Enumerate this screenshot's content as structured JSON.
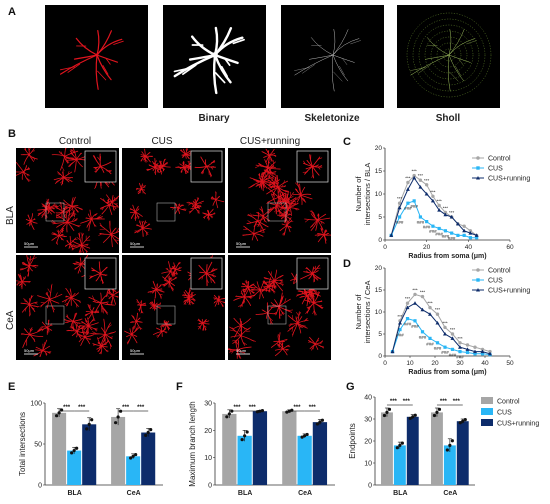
{
  "panel_labels": {
    "a": "A",
    "b": "B",
    "c": "C",
    "d": "D",
    "e": "E",
    "f": "F",
    "g": "G"
  },
  "panel_a": {
    "captions": [
      "",
      "Binary",
      "Skeletonize",
      "Sholl"
    ]
  },
  "panel_b": {
    "columns": [
      "Control",
      "CUS",
      "CUS+running"
    ],
    "rows": [
      "BLA",
      "CeA"
    ],
    "scale_label": "50μm"
  },
  "colors": {
    "control": "#a6a6a6",
    "cus": "#29b6f6",
    "cus_running": "#0d2c6b",
    "astro_red": "#e0141e"
  },
  "legend": [
    "Control",
    "CUS",
    "CUS+running"
  ],
  "chart_data": [
    {
      "id": "C",
      "type": "line",
      "xlabel": "Radius from soma (μm)",
      "ylabel": "Number of intersections / BLA",
      "xlim": [
        0,
        60
      ],
      "ylim": [
        0,
        20
      ],
      "xticks": [
        0,
        20,
        40,
        60
      ],
      "yticks": [
        0,
        5,
        10,
        15,
        20
      ],
      "x": [
        3,
        7,
        11,
        14,
        17,
        20,
        23,
        26,
        29,
        32,
        35,
        38,
        41,
        44
      ],
      "series": [
        {
          "name": "Control",
          "values": [
            1,
            8,
            12.5,
            14,
            13,
            12,
            9.5,
            7.5,
            6,
            5,
            3.5,
            3,
            2,
            1
          ]
        },
        {
          "name": "CUS",
          "values": [
            1,
            5,
            8,
            8.5,
            5,
            4,
            3,
            2.5,
            2,
            1.5,
            1,
            1,
            0.5,
            0.5
          ]
        },
        {
          "name": "CUS+running",
          "values": [
            1,
            7,
            11,
            13.5,
            11.5,
            10,
            8.5,
            6.5,
            5.5,
            5,
            3.5,
            2,
            1.5,
            1
          ]
        }
      ],
      "marks_top": "***",
      "marks_bottom": "###"
    },
    {
      "id": "D",
      "type": "line",
      "xlabel": "Radius from soma (μm)",
      "ylabel": "Number of intersections / CeA",
      "xlim": [
        0,
        50
      ],
      "ylim": [
        0,
        20
      ],
      "xticks": [
        0,
        10,
        20,
        30,
        40,
        50
      ],
      "yticks": [
        0,
        5,
        10,
        15,
        20
      ],
      "x": [
        3,
        6,
        9,
        12,
        15,
        18,
        21,
        24,
        27,
        30,
        33,
        36,
        39,
        42
      ],
      "series": [
        {
          "name": "Control",
          "values": [
            1,
            8,
            12,
            14,
            13.5,
            11,
            9.5,
            6.5,
            5,
            3,
            2.5,
            2,
            1.5,
            1
          ]
        },
        {
          "name": "CUS",
          "values": [
            1,
            6,
            8.5,
            8,
            5.5,
            4,
            3,
            2,
            1.5,
            1,
            0.8,
            0.5,
            0.5,
            0.3
          ]
        },
        {
          "name": "CUS+running",
          "values": [
            1,
            7.5,
            11,
            12,
            10.5,
            9.5,
            7.5,
            5,
            4,
            2,
            1.5,
            1,
            1,
            0.5
          ]
        }
      ],
      "marks_top": "***",
      "marks_bottom": "###"
    },
    {
      "id": "E",
      "type": "bar",
      "ylabel": "Total intersections",
      "categories": [
        "BLA",
        "CeA"
      ],
      "ylim": [
        0,
        100
      ],
      "yticks": [
        0,
        50,
        100
      ],
      "series": [
        {
          "name": "Control",
          "values": [
            88,
            83
          ]
        },
        {
          "name": "CUS",
          "values": [
            42,
            35
          ]
        },
        {
          "name": "CUS+running",
          "values": [
            74,
            64
          ]
        }
      ],
      "errors": [
        [
          5,
          10
        ],
        [
          4,
          3
        ],
        [
          8,
          5
        ]
      ],
      "sig": "***"
    },
    {
      "id": "F",
      "type": "bar",
      "ylabel": "Maximum branch length",
      "categories": [
        "BLA",
        "CeA"
      ],
      "ylim": [
        0,
        30
      ],
      "yticks": [
        0,
        10,
        20,
        30
      ],
      "series": [
        {
          "name": "Control",
          "values": [
            26,
            27
          ]
        },
        {
          "name": "CUS",
          "values": [
            18,
            18
          ]
        },
        {
          "name": "CUS+running",
          "values": [
            27,
            23
          ]
        }
      ],
      "errors": [
        [
          1.5,
          0.5
        ],
        [
          2,
          0.7
        ],
        [
          0.3,
          1
        ]
      ],
      "sig": "***"
    },
    {
      "id": "G",
      "type": "bar",
      "ylabel": "Endpoints",
      "categories": [
        "BLA",
        "CeA"
      ],
      "ylim": [
        0,
        40
      ],
      "yticks": [
        0,
        10,
        20,
        30,
        40
      ],
      "series": [
        {
          "name": "Control",
          "values": [
            33,
            33
          ]
        },
        {
          "name": "CUS",
          "values": [
            18,
            18
          ]
        },
        {
          "name": "CUS+running",
          "values": [
            31,
            29
          ]
        }
      ],
      "errors": [
        [
          2,
          2
        ],
        [
          1.5,
          3
        ],
        [
          1,
          1
        ]
      ],
      "sig": "***"
    }
  ]
}
